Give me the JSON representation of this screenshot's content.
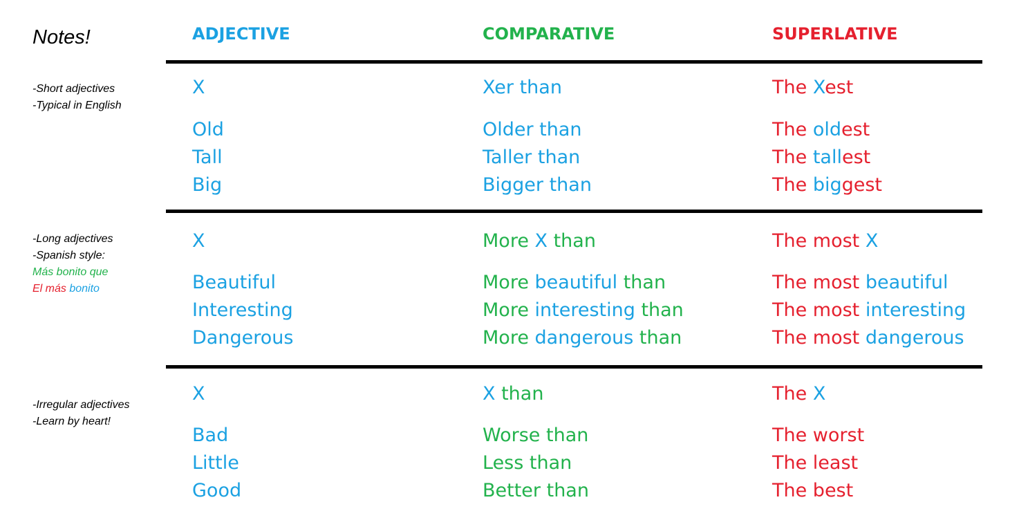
{
  "notes_title": "Notes!",
  "headers": {
    "adjective": "ADJECTIVE",
    "comparative": "COMPARATIVE",
    "superlative": "SUPERLATIVE"
  },
  "colors": {
    "adjective": "#1ba1e2",
    "comparative": "#22b24c",
    "superlative": "#e5202e",
    "rule": "#000000"
  },
  "sections": [
    {
      "notes": [
        [
          {
            "t": "-Short adjectives",
            "c": "black"
          }
        ],
        [
          {
            "t": "-Typical in English",
            "c": "black"
          }
        ]
      ],
      "rows": [
        [
          [
            {
              "t": "X",
              "c": "blue"
            }
          ],
          [
            {
              "t": "Xer than",
              "c": "blue"
            }
          ],
          [
            {
              "t": "The ",
              "c": "red"
            },
            {
              "t": "X",
              "c": "blue"
            },
            {
              "t": "est",
              "c": "red"
            }
          ]
        ],
        [
          [
            {
              "t": "Old",
              "c": "blue"
            }
          ],
          [
            {
              "t": "Older than",
              "c": "blue"
            }
          ],
          [
            {
              "t": "The ",
              "c": "red"
            },
            {
              "t": "old",
              "c": "blue"
            },
            {
              "t": "est",
              "c": "red"
            }
          ]
        ],
        [
          [
            {
              "t": "Tall",
              "c": "blue"
            }
          ],
          [
            {
              "t": "Taller than",
              "c": "blue"
            }
          ],
          [
            {
              "t": "The ",
              "c": "red"
            },
            {
              "t": "tall",
              "c": "blue"
            },
            {
              "t": "est",
              "c": "red"
            }
          ]
        ],
        [
          [
            {
              "t": "Big",
              "c": "blue"
            }
          ],
          [
            {
              "t": "Bigger than",
              "c": "blue"
            }
          ],
          [
            {
              "t": "The ",
              "c": "red"
            },
            {
              "t": "big",
              "c": "blue"
            },
            {
              "t": "gest",
              "c": "red"
            }
          ]
        ]
      ]
    },
    {
      "notes": [
        [
          {
            "t": "-Long adjectives",
            "c": "black"
          }
        ],
        [
          {
            "t": "-Spanish style:",
            "c": "black"
          }
        ],
        [
          {
            "t": "Más bonito que",
            "c": "green"
          }
        ],
        [
          {
            "t": "El más ",
            "c": "red"
          },
          {
            "t": "bonito",
            "c": "blue"
          }
        ]
      ],
      "rows": [
        [
          [
            {
              "t": "X",
              "c": "blue"
            }
          ],
          [
            {
              "t": "More ",
              "c": "green"
            },
            {
              "t": "X",
              "c": "blue"
            },
            {
              "t": " than",
              "c": "green"
            }
          ],
          [
            {
              "t": "The most ",
              "c": "red"
            },
            {
              "t": "X",
              "c": "blue"
            }
          ]
        ],
        [
          [
            {
              "t": "Beautiful",
              "c": "blue"
            }
          ],
          [
            {
              "t": "More ",
              "c": "green"
            },
            {
              "t": "beautiful",
              "c": "blue"
            },
            {
              "t": " than",
              "c": "green"
            }
          ],
          [
            {
              "t": "The most ",
              "c": "red"
            },
            {
              "t": "beautiful",
              "c": "blue"
            }
          ]
        ],
        [
          [
            {
              "t": "Interesting",
              "c": "blue"
            }
          ],
          [
            {
              "t": "More ",
              "c": "green"
            },
            {
              "t": "interesting",
              "c": "blue"
            },
            {
              "t": " than",
              "c": "green"
            }
          ],
          [
            {
              "t": "The most ",
              "c": "red"
            },
            {
              "t": "interesting",
              "c": "blue"
            }
          ]
        ],
        [
          [
            {
              "t": "Dangerous",
              "c": "blue"
            }
          ],
          [
            {
              "t": "More ",
              "c": "green"
            },
            {
              "t": "dangerous",
              "c": "blue"
            },
            {
              "t": " than",
              "c": "green"
            }
          ],
          [
            {
              "t": "The most ",
              "c": "red"
            },
            {
              "t": "dangerous",
              "c": "blue"
            }
          ]
        ]
      ]
    },
    {
      "notes": [
        [
          {
            "t": "-Irregular adjectives",
            "c": "black"
          }
        ],
        [
          {
            "t": "-Learn by heart!",
            "c": "black"
          }
        ]
      ],
      "rows": [
        [
          [
            {
              "t": "X",
              "c": "blue"
            }
          ],
          [
            {
              "t": "X",
              "c": "blue"
            },
            {
              "t": " than",
              "c": "green"
            }
          ],
          [
            {
              "t": "The ",
              "c": "red"
            },
            {
              "t": "X",
              "c": "blue"
            }
          ]
        ],
        [
          [
            {
              "t": "Bad",
              "c": "blue"
            }
          ],
          [
            {
              "t": "Worse than",
              "c": "green"
            }
          ],
          [
            {
              "t": "The worst",
              "c": "red"
            }
          ]
        ],
        [
          [
            {
              "t": "Little",
              "c": "blue"
            }
          ],
          [
            {
              "t": "Less than",
              "c": "green"
            }
          ],
          [
            {
              "t": "The least",
              "c": "red"
            }
          ]
        ],
        [
          [
            {
              "t": "Good",
              "c": "blue"
            }
          ],
          [
            {
              "t": "Better than",
              "c": "green"
            }
          ],
          [
            {
              "t": "The best",
              "c": "red"
            }
          ]
        ]
      ]
    }
  ]
}
